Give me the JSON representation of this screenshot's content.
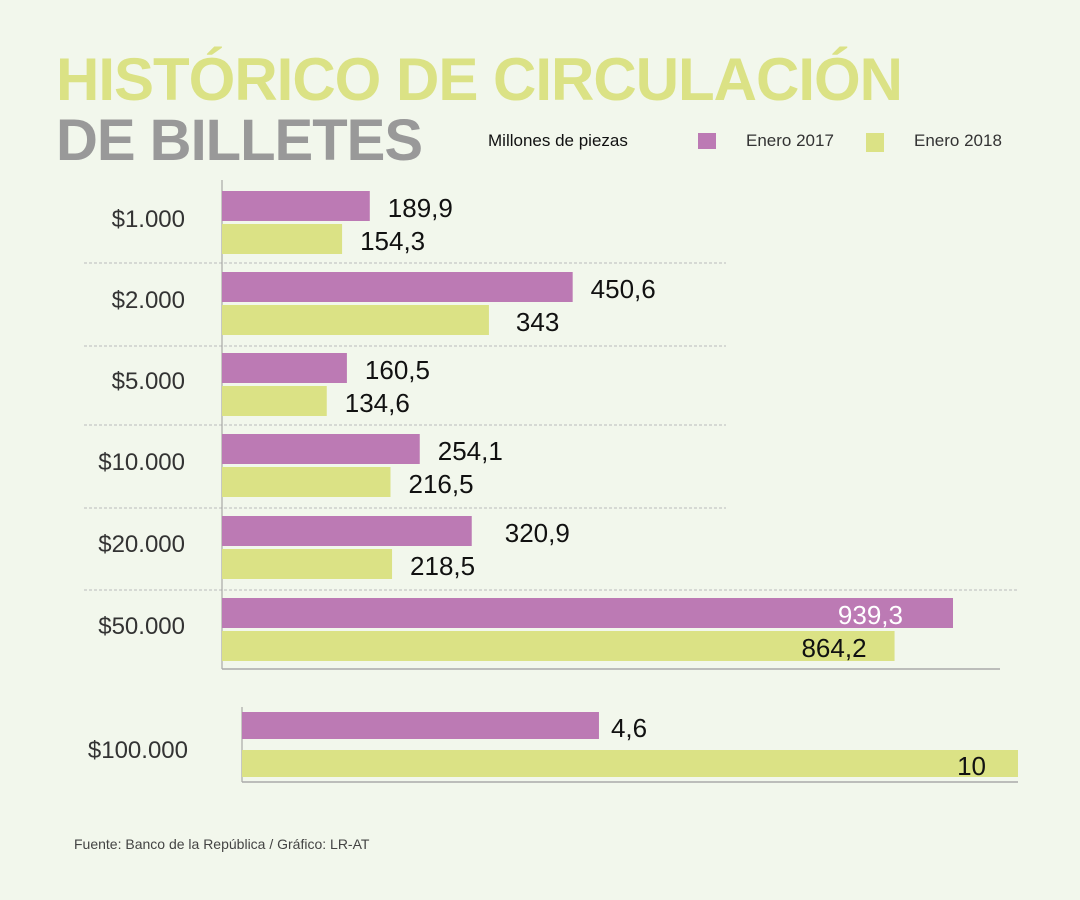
{
  "header": {
    "title_line1": "HISTÓRICO DE CIRCULACIÓN",
    "title_line2": "DE BILLETES",
    "unit_label": "Millones de piezas"
  },
  "colors": {
    "series_2017": "#bc7ab4",
    "series_2018": "#dbe285",
    "title_green": "#dbe285",
    "title_gray": "#999999",
    "background": "#f2f7ec"
  },
  "source": "Fuente: Banco de la República / Gráfico: LR-AT",
  "chart_data": [
    {
      "type": "bar",
      "orientation": "horizontal",
      "title": "Histórico de circulación de billetes",
      "ylabel": "Millones de piezas",
      "legend": "top-right",
      "grid": false,
      "categories": [
        "$1.000",
        "$2.000",
        "$5.000",
        "$10.000",
        "$20.000",
        "$50.000"
      ],
      "series": [
        {
          "name": "Enero 2017",
          "values": [
            189.9,
            450.6,
            160.5,
            254.1,
            320.9,
            939.3
          ],
          "labels": [
            "189,9",
            "450,6",
            "160,5",
            "254,1",
            "320,9",
            "939,3"
          ]
        },
        {
          "name": "Enero 2018",
          "values": [
            154.3,
            343,
            134.6,
            216.5,
            218.5,
            864.2
          ],
          "labels": [
            "154,3",
            "343",
            "134,6",
            "216,5",
            "218,5",
            "864,2"
          ]
        }
      ],
      "xlim": [
        0,
        1000
      ]
    },
    {
      "type": "bar",
      "orientation": "horizontal",
      "categories": [
        "$100.000"
      ],
      "series": [
        {
          "name": "Enero 2017",
          "values": [
            4.6
          ],
          "labels": [
            "4,6"
          ]
        },
        {
          "name": "Enero 2018",
          "values": [
            10
          ],
          "labels": [
            "10"
          ]
        }
      ],
      "xlim": [
        0,
        10
      ]
    }
  ]
}
